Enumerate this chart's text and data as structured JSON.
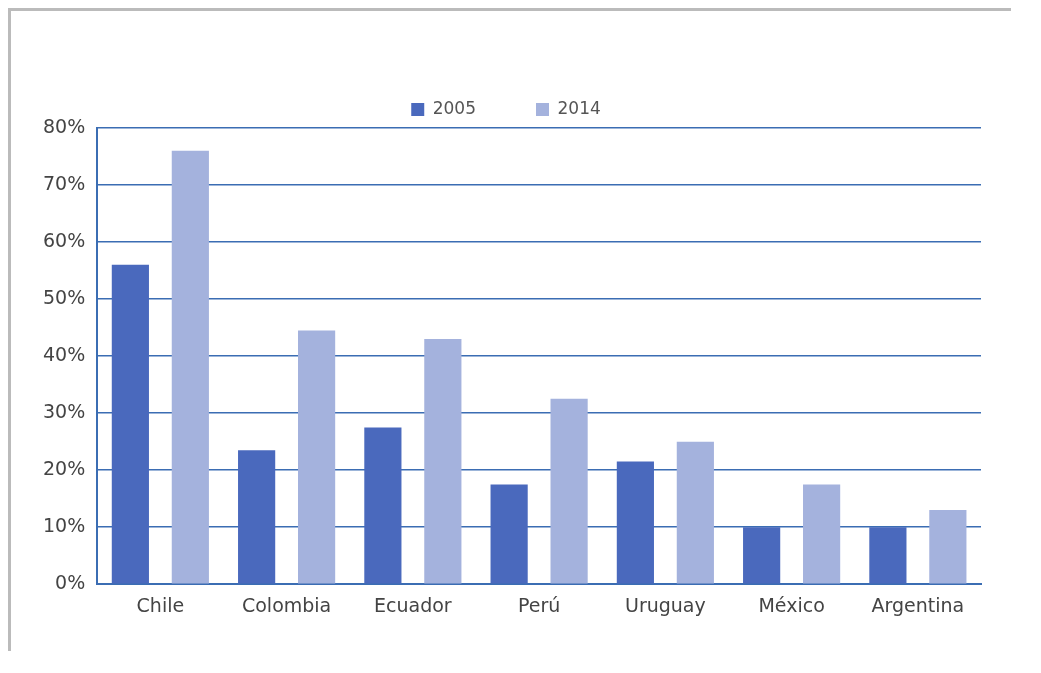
{
  "chart_data": {
    "type": "bar",
    "categories": [
      "Chile",
      "Colombia",
      "Ecuador",
      "Perú",
      "Uruguay",
      "México",
      "Argentina"
    ],
    "series": [
      {
        "name": "2005",
        "color": "#4a69bd",
        "values": [
          56,
          23.5,
          27.5,
          17.5,
          21.5,
          10,
          10
        ]
      },
      {
        "name": "2014",
        "color": "#a4b2dd",
        "values": [
          76,
          44.5,
          43,
          32.5,
          25,
          17.5,
          13
        ]
      }
    ],
    "ylim": [
      0,
      80
    ],
    "yticks": [
      {
        "value": 0,
        "label": "0%"
      },
      {
        "value": 10,
        "label": "10%"
      },
      {
        "value": 20,
        "label": "20%"
      },
      {
        "value": 30,
        "label": "30%"
      },
      {
        "value": 40,
        "label": "40%"
      },
      {
        "value": 50,
        "label": "50%"
      },
      {
        "value": 60,
        "label": "60%"
      },
      {
        "value": 70,
        "label": "70%"
      },
      {
        "value": 80,
        "label": "80%"
      }
    ],
    "grid": "y",
    "legend": "top"
  }
}
